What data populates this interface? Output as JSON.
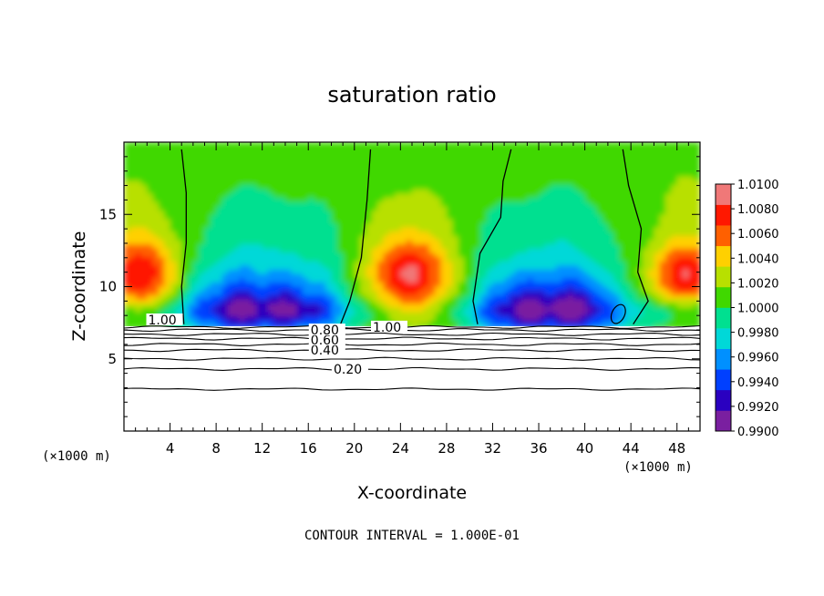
{
  "chart_data": {
    "type": "heatmap",
    "title": "saturation ratio",
    "xlabel": "X-coordinate",
    "ylabel": "Z-coordinate",
    "x_unit": "(×1000 m)",
    "y_unit": "(×1000 m)",
    "xlim": [
      0,
      50
    ],
    "ylim": [
      0,
      20
    ],
    "x_ticks": [
      4,
      8,
      12,
      16,
      20,
      24,
      28,
      32,
      36,
      40,
      44,
      48
    ],
    "x_tick_labels": [
      "4",
      "8",
      "12",
      "16",
      "20",
      "24",
      "28",
      "32",
      "36",
      "40",
      "44",
      "48"
    ],
    "y_ticks": [
      5,
      10,
      15
    ],
    "y_tick_labels": [
      "5",
      "10",
      "15"
    ],
    "colorbar": {
      "labels": [
        "1.0100",
        "1.0080",
        "1.0060",
        "1.0040",
        "1.0020",
        "1.0000",
        "0.9980",
        "0.9960",
        "0.9940",
        "0.9920",
        "0.9900"
      ],
      "min": 0.99,
      "max": 1.01,
      "colors": [
        "#7a1fa0",
        "#2a00c0",
        "#0040ff",
        "#0090ff",
        "#00d8d8",
        "#00e090",
        "#40d800",
        "#b8e000",
        "#ffd000",
        "#ff6000",
        "#ff1800",
        "#f07878"
      ]
    },
    "contour_lines": {
      "interval": 0.1,
      "levels_z": [
        {
          "level": 0.2,
          "z": 4.3
        },
        {
          "level": 0.3,
          "z": 5.0
        },
        {
          "level": 0.4,
          "z": 5.6
        },
        {
          "level": 0.5,
          "z": 6.0
        },
        {
          "level": 0.6,
          "z": 6.4
        },
        {
          "level": 0.7,
          "z": 6.7
        },
        {
          "level": 0.8,
          "z": 7.0
        },
        {
          "level": 0.9,
          "z": 7.2
        }
      ],
      "base_line_z": 2.9,
      "labels": [
        {
          "text": "0.20",
          "x": 18.2,
          "z": 4.3
        },
        {
          "text": "0.40",
          "x": 16.2,
          "z": 5.6
        },
        {
          "text": "0.60",
          "x": 16.2,
          "z": 6.3
        },
        {
          "text": "0.80",
          "x": 16.2,
          "z": 7.0
        },
        {
          "text": "1.00",
          "x": 2.1,
          "z": 7.7
        },
        {
          "text": "1.00",
          "x": 21.6,
          "z": 7.2
        }
      ],
      "s1_lines_x": [
        [
          [
            5.0,
            19.5
          ],
          [
            5.4,
            16.5
          ],
          [
            5.4,
            13.0
          ],
          [
            5.0,
            10.0
          ],
          [
            5.2,
            7.4
          ]
        ],
        [
          [
            21.4,
            19.5
          ],
          [
            21.1,
            16.0
          ],
          [
            20.6,
            12.0
          ],
          [
            19.6,
            9.0
          ],
          [
            18.8,
            7.4
          ]
        ],
        [
          [
            33.6,
            19.5
          ],
          [
            32.9,
            17.3
          ],
          [
            32.7,
            14.8
          ],
          [
            30.9,
            12.3
          ],
          [
            30.3,
            9.0
          ],
          [
            30.7,
            7.4
          ]
        ],
        [
          [
            43.3,
            19.5
          ],
          [
            43.8,
            17.0
          ],
          [
            44.9,
            14.0
          ],
          [
            44.6,
            11.0
          ],
          [
            45.5,
            9.0
          ],
          [
            44.2,
            7.4
          ]
        ]
      ]
    },
    "contour_interval_note": "CONTOUR INTERVAL = 1.000E-01"
  }
}
